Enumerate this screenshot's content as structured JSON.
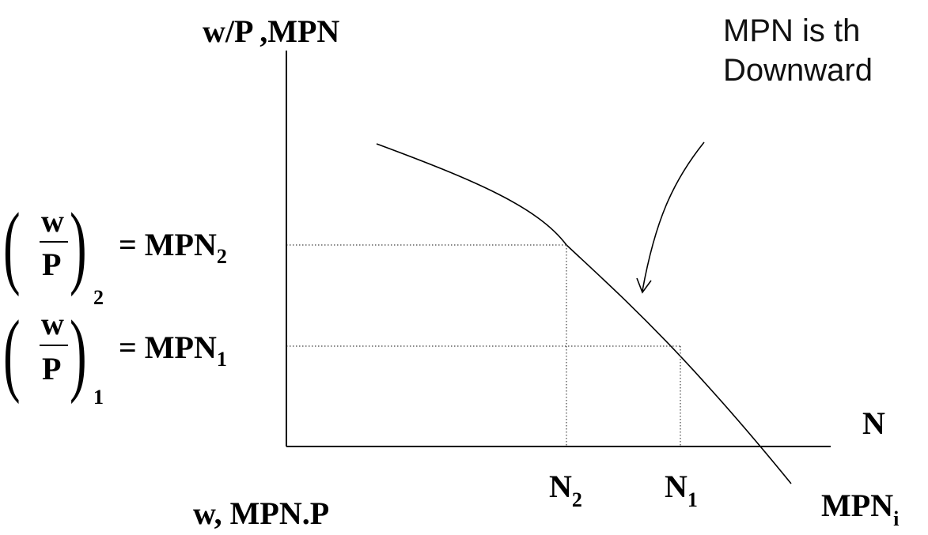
{
  "axes": {
    "y_label": "w/P ,MPN",
    "x_label": "N",
    "bottom_label": "w, MPN.P"
  },
  "annotation": {
    "line1": "MPN is th",
    "line2": "Downward"
  },
  "curve_label": {
    "main": "MPN",
    "sub": "i"
  },
  "levels": [
    {
      "numerator": "w",
      "denominator": "P",
      "subscript": "2",
      "rhs": "= MPN",
      "rhs_sub": "2",
      "x_label": "N",
      "x_sub": "2"
    },
    {
      "numerator": "w",
      "denominator": "P",
      "subscript": "1",
      "rhs": "= MPN",
      "rhs_sub": "1",
      "x_label": "N",
      "x_sub": "1"
    }
  ]
}
